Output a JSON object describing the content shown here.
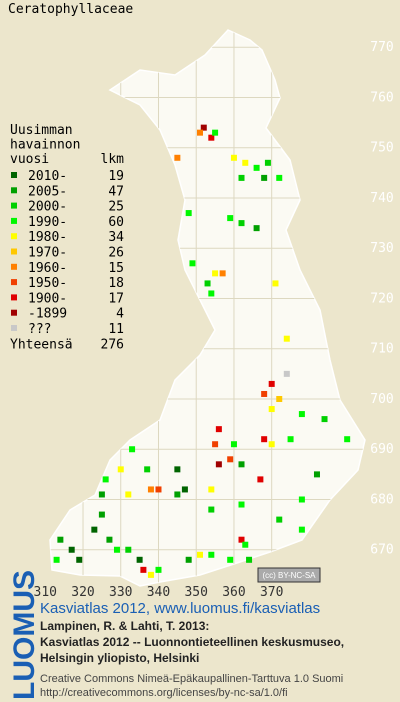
{
  "title": "Ceratophyllaceae",
  "legend": {
    "heading": [
      "Uusimman",
      "havainnon",
      "vuosi"
    ],
    "count_heading": "lkm",
    "entries": [
      {
        "label": "2010-",
        "count": 19,
        "color": "#006400"
      },
      {
        "label": "2005-",
        "count": 47,
        "color": "#00a000"
      },
      {
        "label": "2000-",
        "count": 25,
        "color": "#00d000"
      },
      {
        "label": "1990-",
        "count": 60,
        "color": "#00f800"
      },
      {
        "label": "1980-",
        "count": 34,
        "color": "#ffff00"
      },
      {
        "label": "1970-",
        "count": 26,
        "color": "#ffc800"
      },
      {
        "label": "1960-",
        "count": 15,
        "color": "#ff8000"
      },
      {
        "label": "1950-",
        "count": 18,
        "color": "#f04000"
      },
      {
        "label": "1900-",
        "count": 17,
        "color": "#e00000"
      },
      {
        "label": "-1899",
        "count": 4,
        "color": "#a00000"
      },
      {
        "label": "???",
        "count": 11,
        "color": "#c8c8c8"
      }
    ],
    "total_label": "Yhteensä",
    "total": 276
  },
  "grid": {
    "xlim": [
      298,
      404
    ],
    "ylim": [
      660,
      779.4
    ],
    "xticks": [
      310,
      320,
      330,
      340,
      350,
      360,
      370
    ],
    "yticks": [
      670,
      680,
      690,
      700,
      710,
      720,
      730,
      740,
      750,
      760,
      770
    ]
  },
  "points": [
    {
      "x": 352,
      "y": 754,
      "period": "-1899"
    },
    {
      "x": 354,
      "y": 752,
      "period": "1900-"
    },
    {
      "x": 351,
      "y": 753,
      "period": "1960-"
    },
    {
      "x": 355,
      "y": 753,
      "period": "1990-"
    },
    {
      "x": 345,
      "y": 748,
      "period": "1960-"
    },
    {
      "x": 360,
      "y": 748,
      "period": "1980-"
    },
    {
      "x": 363,
      "y": 747,
      "period": "1980-"
    },
    {
      "x": 366,
      "y": 746,
      "period": "1990-"
    },
    {
      "x": 362,
      "y": 744,
      "period": "2000-"
    },
    {
      "x": 369,
      "y": 747,
      "period": "2000-"
    },
    {
      "x": 372,
      "y": 744,
      "period": "1990-"
    },
    {
      "x": 368,
      "y": 744,
      "period": "2005-"
    },
    {
      "x": 348,
      "y": 737,
      "period": "1990-"
    },
    {
      "x": 359,
      "y": 736,
      "period": "1990-"
    },
    {
      "x": 362,
      "y": 735,
      "period": "2000-"
    },
    {
      "x": 366,
      "y": 734,
      "period": "2005-"
    },
    {
      "x": 349,
      "y": 727,
      "period": "1990-"
    },
    {
      "x": 353,
      "y": 723,
      "period": "2000-"
    },
    {
      "x": 354,
      "y": 721,
      "period": "1990-"
    },
    {
      "x": 355,
      "y": 725,
      "period": "1980-"
    },
    {
      "x": 357,
      "y": 725,
      "period": "1960-"
    },
    {
      "x": 371,
      "y": 723,
      "period": "1980-"
    },
    {
      "x": 374,
      "y": 712,
      "period": "1980-"
    },
    {
      "x": 374,
      "y": 705,
      "period": "???"
    },
    {
      "x": 370,
      "y": 703,
      "period": "1900-"
    },
    {
      "x": 368,
      "y": 701,
      "period": "1950-"
    },
    {
      "x": 370,
      "y": 698,
      "period": "1980-"
    },
    {
      "x": 372,
      "y": 700,
      "period": "1970-"
    },
    {
      "x": 378,
      "y": 697,
      "period": "1990-"
    },
    {
      "x": 384,
      "y": 696,
      "period": "2000-"
    },
    {
      "x": 390,
      "y": 692,
      "period": "1990-"
    },
    {
      "x": 368,
      "y": 692,
      "period": "1900-"
    },
    {
      "x": 370,
      "y": 691,
      "period": "1980-"
    },
    {
      "x": 356,
      "y": 694,
      "period": "1900-"
    },
    {
      "x": 355,
      "y": 691,
      "period": "1950-"
    },
    {
      "x": 359,
      "y": 688,
      "period": "1950-"
    },
    {
      "x": 362,
      "y": 687,
      "period": "2005-"
    },
    {
      "x": 356,
      "y": 687,
      "period": "-1899"
    },
    {
      "x": 360,
      "y": 691,
      "period": "1990-"
    },
    {
      "x": 333,
      "y": 690,
      "period": "1990-"
    },
    {
      "x": 330,
      "y": 686,
      "period": "1980-"
    },
    {
      "x": 337,
      "y": 686,
      "period": "2000-"
    },
    {
      "x": 345,
      "y": 686,
      "period": "2010-"
    },
    {
      "x": 326,
      "y": 684,
      "period": "1990-"
    },
    {
      "x": 325,
      "y": 681,
      "period": "2005-"
    },
    {
      "x": 338,
      "y": 682,
      "period": "1960-"
    },
    {
      "x": 340,
      "y": 682,
      "period": "1950-"
    },
    {
      "x": 345,
      "y": 681,
      "period": "2005-"
    },
    {
      "x": 347,
      "y": 682,
      "period": "2010-"
    },
    {
      "x": 332,
      "y": 681,
      "period": "1980-"
    },
    {
      "x": 354,
      "y": 682,
      "period": "1980-"
    },
    {
      "x": 354,
      "y": 678,
      "period": "2000-"
    },
    {
      "x": 362,
      "y": 679,
      "period": "1990-"
    },
    {
      "x": 367,
      "y": 684,
      "period": "1900-"
    },
    {
      "x": 375,
      "y": 692,
      "period": "1990-"
    },
    {
      "x": 382,
      "y": 685,
      "period": "2005-"
    },
    {
      "x": 378,
      "y": 680,
      "period": "1990-"
    },
    {
      "x": 372,
      "y": 676,
      "period": "2000-"
    },
    {
      "x": 378,
      "y": 674,
      "period": "1990-"
    },
    {
      "x": 325,
      "y": 677,
      "period": "2005-"
    },
    {
      "x": 323,
      "y": 674,
      "period": "2010-"
    },
    {
      "x": 314,
      "y": 672,
      "period": "2005-"
    },
    {
      "x": 317,
      "y": 670,
      "period": "2010-"
    },
    {
      "x": 313,
      "y": 668,
      "period": "1990-"
    },
    {
      "x": 319,
      "y": 668,
      "period": "2010-"
    },
    {
      "x": 327,
      "y": 672,
      "period": "2005-"
    },
    {
      "x": 329,
      "y": 670,
      "period": "1990-"
    },
    {
      "x": 332,
      "y": 670,
      "period": "2000-"
    },
    {
      "x": 335,
      "y": 668,
      "period": "2010-"
    },
    {
      "x": 338,
      "y": 665,
      "period": "1980-"
    },
    {
      "x": 336,
      "y": 666,
      "period": "1900-"
    },
    {
      "x": 340,
      "y": 666,
      "period": "1990-"
    },
    {
      "x": 348,
      "y": 668,
      "period": "2005-"
    },
    {
      "x": 351,
      "y": 669,
      "period": "1980-"
    },
    {
      "x": 354,
      "y": 669,
      "period": "1990-"
    },
    {
      "x": 362,
      "y": 672,
      "period": "1900-"
    },
    {
      "x": 363,
      "y": 671,
      "period": "1990-"
    },
    {
      "x": 364,
      "y": 668,
      "period": "2000-"
    },
    {
      "x": 359,
      "y": 668,
      "period": "1990-"
    }
  ],
  "badge": "(cc) BY-NC-SA",
  "logo": "LUOMUS",
  "footer": {
    "link": "Kasviatlas 2012, www.luomus.fi/kasviatlas",
    "citation": [
      "Lampinen, R. & Lahti, T. 2013:",
      "Kasviatlas 2012 -- Luonnontieteellinen keskusmuseo,",
      "Helsingin yliopisto, Helsinki"
    ],
    "license": "Creative Commons Nimeä-Epäkaupallinen-Tarttuva 1.0 Suomi",
    "license_url": "http://creativecommons.org/licenses/by-nc-sa/1.0/fi"
  }
}
